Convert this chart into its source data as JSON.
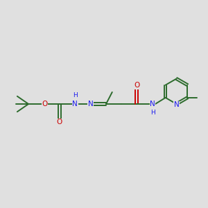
{
  "background_color": "#e0e0e0",
  "bond_color": "#2d6b2d",
  "nitrogen_color": "#1a1aee",
  "oxygen_color": "#cc0000",
  "font_size": 7.0,
  "line_width": 1.4,
  "xlim": [
    0,
    10
  ],
  "ylim": [
    2.5,
    7.5
  ],
  "figsize": [
    3.0,
    3.0
  ],
  "dpi": 100
}
